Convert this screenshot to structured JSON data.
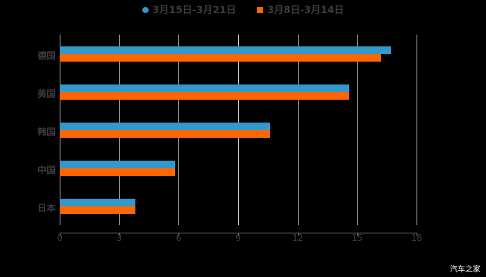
{
  "chart_data": {
    "type": "bar",
    "orientation": "horizontal",
    "title": "",
    "categories": [
      "德国",
      "美国",
      "韩国",
      "中国",
      "日本"
    ],
    "series": [
      {
        "name": "3月15日-3月21日",
        "color": "#3399cc",
        "values": [
          16.7,
          14.6,
          10.6,
          5.8,
          3.8
        ]
      },
      {
        "name": "3月8日-3月14日",
        "color": "#ff6600",
        "values": [
          16.2,
          14.6,
          10.6,
          5.8,
          3.8
        ]
      }
    ],
    "xlabel": "",
    "ylabel": "",
    "xlim": [
      0,
      18
    ],
    "xticks": [
      "0",
      "3",
      "6",
      "9",
      "12",
      "15",
      "18"
    ],
    "grid": true,
    "legend_position": "top"
  },
  "legend": [
    {
      "label": "3月15日-3月21日",
      "color": "#3399cc",
      "marker": "circle"
    },
    {
      "label": "3月8日-3月14日",
      "color": "#ff6600",
      "marker": "square"
    }
  ],
  "watermark": "汽车之家"
}
